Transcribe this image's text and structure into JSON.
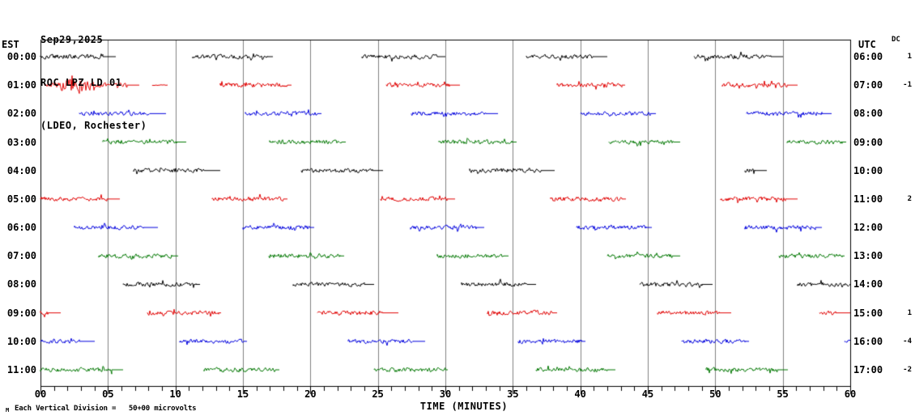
{
  "title": {
    "date": "Sep29,2025",
    "station": "ROC LPZ LD 01",
    "location": "(LDEO, Rochester)"
  },
  "left_axis": {
    "header": "EST"
  },
  "right_axis": {
    "header": "UTC"
  },
  "dc_column": {
    "header": "DC"
  },
  "x_axis": {
    "label": "TIME (MINUTES)",
    "tick_labels": [
      "00",
      "05",
      "10",
      "15",
      "20",
      "25",
      "30",
      "35",
      "40",
      "45",
      "50",
      "55",
      "60"
    ],
    "minor_tick_every_minutes": 1,
    "major_tick_every_minutes": 5
  },
  "footer": {
    "note": "Each Vertical Division =   50+00 microvolts",
    "corner_mark": "M"
  },
  "colors": {
    "black": "#000000",
    "red": "#e00000",
    "blue": "#0000dd",
    "green": "#007700",
    "grid": "#808080"
  },
  "chart_data": {
    "type": "line",
    "description": "Helicorder seismogram, 12 hourly traces, 60 minutes per trace; segments given as [start_min, end_min, amplitude_px, flat_tail_min]",
    "x_range_minutes": [
      0,
      60
    ],
    "grid_interval_minutes": 5,
    "vertical_division": "50+00 microvolts",
    "rows": [
      {
        "est": "00:00",
        "utc": "06:00",
        "dc": "1",
        "color": "#000000",
        "segments": [
          [
            0,
            4.6,
            3.5,
            1.0
          ],
          [
            11.3,
            16.8,
            3.2,
            0.4
          ],
          [
            23.8,
            29.4,
            3.4,
            0.6
          ],
          [
            36.0,
            40.9,
            3.2,
            1.1
          ],
          [
            48.4,
            54.1,
            3.4,
            0.9
          ]
        ]
      },
      {
        "est": "01:00",
        "utc": "07:00",
        "dc": "-1",
        "color": "#e00000",
        "burst": {
          "center": 2.7,
          "sigma": 0.75,
          "peak": 11
        },
        "segments": [
          [
            0.3,
            6.4,
            3.2,
            0.9
          ],
          [
            8.3,
            9.4,
            0.6,
            0
          ],
          [
            13.3,
            18.3,
            3.4,
            0.3
          ],
          [
            25.6,
            30.3,
            3.4,
            0.8
          ],
          [
            38.3,
            43.1,
            3.3,
            0.2
          ],
          [
            50.5,
            55.3,
            3.6,
            0.8
          ]
        ]
      },
      {
        "est": "02:00",
        "utc": "08:00",
        "dc": "",
        "color": "#0000dd",
        "segments": [
          [
            2.9,
            8.1,
            3.3,
            1.2
          ],
          [
            15.2,
            20.5,
            3.4,
            0.3
          ],
          [
            27.5,
            33.0,
            3.3,
            0.9
          ],
          [
            40.0,
            45.2,
            3.2,
            0.4
          ],
          [
            52.3,
            57.9,
            3.4,
            0.7
          ]
        ]
      },
      {
        "est": "03:00",
        "utc": "09:00",
        "dc": "",
        "color": "#007700",
        "segments": [
          [
            4.6,
            10.1,
            3.4,
            0.7
          ],
          [
            17.0,
            22.3,
            3.4,
            0.3
          ],
          [
            29.5,
            34.9,
            3.5,
            0.4
          ],
          [
            42.1,
            46.9,
            3.2,
            0.5
          ],
          [
            55.3,
            59.4,
            3.3,
            0.3
          ]
        ]
      },
      {
        "est": "04:00",
        "utc": "10:00",
        "dc": "",
        "color": "#000000",
        "segments": [
          [
            6.9,
            12.1,
            3.2,
            1.2
          ],
          [
            19.3,
            24.6,
            3.3,
            0.8
          ],
          [
            31.8,
            37.1,
            3.5,
            1.0
          ],
          [
            52.2,
            52.9,
            3.5,
            0.9
          ]
        ]
      },
      {
        "est": "05:00",
        "utc": "11:00",
        "dc": "2",
        "color": "#e00000",
        "segments": [
          [
            0,
            4.9,
            3.3,
            1.0
          ],
          [
            12.7,
            18.0,
            3.4,
            0.3
          ],
          [
            25.2,
            30.1,
            3.3,
            0.6
          ],
          [
            37.8,
            43.1,
            3.4,
            0.3
          ],
          [
            50.4,
            55.2,
            3.6,
            0.9
          ]
        ]
      },
      {
        "est": "06:00",
        "utc": "12:00",
        "dc": "",
        "color": "#0000dd",
        "segments": [
          [
            2.5,
            7.6,
            3.2,
            1.1
          ],
          [
            15.0,
            19.9,
            3.4,
            0.4
          ],
          [
            27.4,
            32.3,
            3.3,
            0.6
          ],
          [
            39.7,
            44.9,
            3.3,
            0.4
          ],
          [
            52.2,
            57.4,
            3.4,
            0.5
          ]
        ]
      },
      {
        "est": "07:00",
        "utc": "13:00",
        "dc": "",
        "color": "#007700",
        "segments": [
          [
            4.3,
            9.7,
            3.5,
            0.5
          ],
          [
            16.9,
            22.2,
            3.4,
            0.3
          ],
          [
            29.4,
            34.3,
            3.4,
            0.4
          ],
          [
            42.0,
            46.8,
            3.3,
            0.6
          ],
          [
            54.7,
            59.4,
            3.4,
            0.2
          ]
        ]
      },
      {
        "est": "08:00",
        "utc": "14:00",
        "dc": "",
        "color": "#000000",
        "segments": [
          [
            6.1,
            11.5,
            3.4,
            0.3
          ],
          [
            18.7,
            24.0,
            3.3,
            0.7
          ],
          [
            31.2,
            36.1,
            3.6,
            0.6
          ],
          [
            44.4,
            49.0,
            3.3,
            0.8
          ],
          [
            56.1,
            60,
            3.4,
            0
          ]
        ]
      },
      {
        "est": "09:00",
        "utc": "15:00",
        "dc": "1",
        "color": "#e00000",
        "segments": [
          [
            0,
            0.6,
            3.0,
            0.9
          ],
          [
            7.9,
            13.2,
            3.4,
            0.2
          ],
          [
            20.5,
            25.3,
            3.5,
            1.2
          ],
          [
            33.1,
            37.9,
            3.5,
            0.4
          ],
          [
            45.7,
            50.3,
            3.4,
            0.9
          ],
          [
            57.7,
            58.9,
            3.3,
            1.1
          ]
        ]
      },
      {
        "est": "10:00",
        "utc": "16:00",
        "dc": "-4",
        "color": "#0000dd",
        "segments": [
          [
            0,
            2.9,
            3.2,
            1.1
          ],
          [
            10.3,
            15.1,
            3.3,
            0.2
          ],
          [
            22.8,
            27.6,
            3.2,
            0.9
          ],
          [
            35.4,
            40.1,
            3.3,
            0.3
          ],
          [
            47.5,
            52.2,
            3.4,
            0.3
          ],
          [
            59.6,
            60,
            2.8,
            0
          ]
        ]
      },
      {
        "est": "11:00",
        "utc": "17:00",
        "dc": "-2",
        "color": "#007700",
        "segments": [
          [
            0,
            5.3,
            3.3,
            0.8
          ],
          [
            12.1,
            17.4,
            3.5,
            0.3
          ],
          [
            24.7,
            30.0,
            3.4,
            0.2
          ],
          [
            36.7,
            42.0,
            3.3,
            0.6
          ],
          [
            49.3,
            54.6,
            3.4,
            0.8
          ]
        ]
      }
    ]
  }
}
